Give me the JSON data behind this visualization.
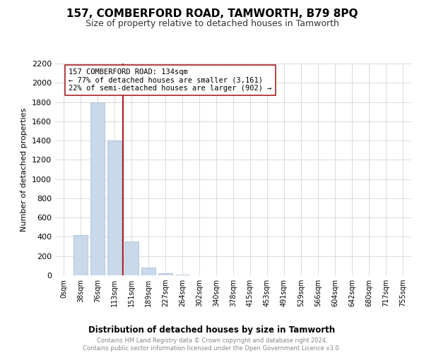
{
  "title": "157, COMBERFORD ROAD, TAMWORTH, B79 8PQ",
  "subtitle": "Size of property relative to detached houses in Tamworth",
  "xlabel": "Distribution of detached houses by size in Tamworth",
  "ylabel": "Number of detached properties",
  "bar_labels": [
    "0sqm",
    "38sqm",
    "76sqm",
    "113sqm",
    "151sqm",
    "189sqm",
    "227sqm",
    "264sqm",
    "302sqm",
    "340sqm",
    "378sqm",
    "415sqm",
    "453sqm",
    "491sqm",
    "529sqm",
    "566sqm",
    "604sqm",
    "642sqm",
    "680sqm",
    "717sqm",
    "755sqm"
  ],
  "bar_values": [
    0,
    420,
    1800,
    1400,
    350,
    80,
    25,
    10,
    0,
    0,
    0,
    0,
    0,
    0,
    0,
    0,
    0,
    0,
    0,
    0,
    0
  ],
  "ylim": [
    0,
    2200
  ],
  "yticks": [
    0,
    200,
    400,
    600,
    800,
    1000,
    1200,
    1400,
    1600,
    1800,
    2000,
    2200
  ],
  "bar_color": "#c9d9ec",
  "bar_edge_color": "#a0b8d0",
  "vline_x": 3.5,
  "vline_color": "#aa2222",
  "annotation_text": "157 COMBERFORD ROAD: 134sqm\n← 77% of detached houses are smaller (3,161)\n22% of semi-detached houses are larger (902) →",
  "annotation_box_color": "#ffffff",
  "annotation_box_edge": "#aa2222",
  "footer_text": "Contains HM Land Registry data © Crown copyright and database right 2024.\nContains public sector information licensed under the Open Government Licence v3.0.",
  "background_color": "#ffffff",
  "grid_color": "#cccccc"
}
